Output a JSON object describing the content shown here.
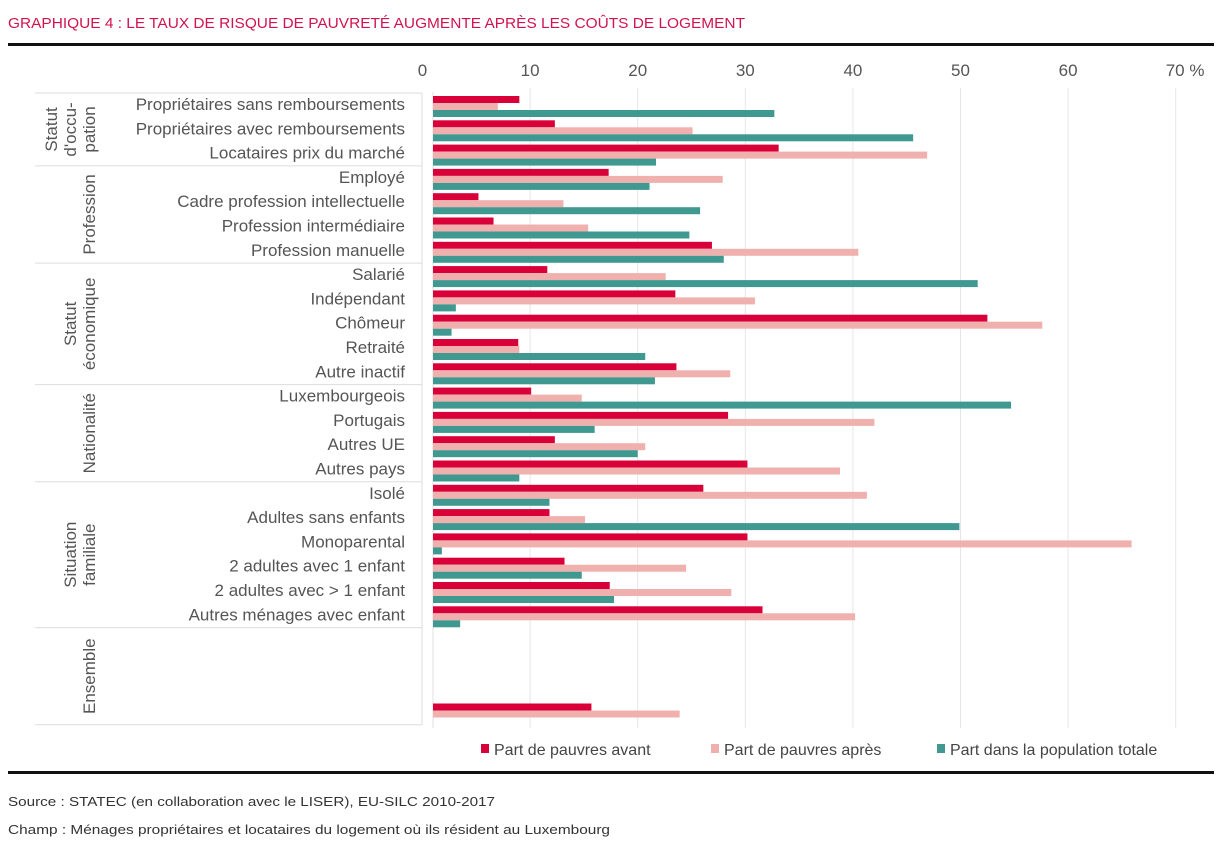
{
  "title": "GRAPHIQUE 4 : LE TAUX DE RISQUE DE PAUVRETÉ AUGMENTE APRÈS LES COÛTS DE LOGEMENT",
  "source": "Source : STATEC (en collaboration avec le LISER), EU-SILC 2010-2017",
  "champ": "Champ : Ménages propriétaires et locataires du logement où ils résident au Luxembourg",
  "colors": {
    "title": "#d1134f",
    "avant": "#d9003a",
    "apres": "#f0b0ae",
    "population": "#3f9990"
  },
  "chart_data": {
    "type": "bar",
    "orientation": "horizontal",
    "title": "LE TAUX DE RISQUE DE PAUVRETÉ AUGMENTE APRÈS LES COÛTS DE LOGEMENT",
    "xlim": [
      0,
      70
    ],
    "x_ticks": [
      0,
      10,
      20,
      30,
      40,
      50,
      60,
      70
    ],
    "x_tick_labels": [
      "0",
      "10",
      "20",
      "30",
      "40",
      "50",
      "60",
      "70 %"
    ],
    "grid": true,
    "legend_position": "bottom",
    "series_names": [
      "Part de pauvres avant",
      "Part de pauvres après",
      "Part dans la population totale"
    ],
    "groups": [
      {
        "label": "Statut\nd'occu-\npation",
        "categories": [
          {
            "label": "Propriétaires sans remboursements",
            "values": [
              9.0,
              7.0,
              32.7
            ]
          },
          {
            "label": "Propriétaires avec remboursements",
            "values": [
              12.3,
              25.1,
              45.6
            ]
          },
          {
            "label": "Locataires prix du marché",
            "values": [
              33.1,
              46.9,
              21.7
            ]
          }
        ]
      },
      {
        "label": "Profession",
        "categories": [
          {
            "label": "Employé",
            "values": [
              17.3,
              27.9,
              21.1
            ]
          },
          {
            "label": "Cadre profession intellectuelle",
            "values": [
              5.2,
              13.1,
              25.8
            ]
          },
          {
            "label": "Profession intermédiaire",
            "values": [
              6.6,
              15.4,
              24.8
            ]
          },
          {
            "label": "Profession manuelle",
            "values": [
              26.9,
              40.5,
              28.0
            ]
          }
        ]
      },
      {
        "label": "Statut\néconomique",
        "categories": [
          {
            "label": "Salarié",
            "values": [
              11.6,
              22.6,
              51.6
            ]
          },
          {
            "label": "Indépendant",
            "values": [
              23.5,
              30.9,
              3.1
            ]
          },
          {
            "label": "Chômeur",
            "values": [
              52.5,
              57.6,
              2.7
            ]
          },
          {
            "label": "Retraité",
            "values": [
              8.9,
              9.0,
              20.7
            ]
          },
          {
            "label": "Autre inactif",
            "values": [
              23.6,
              28.6,
              21.6
            ]
          }
        ]
      },
      {
        "label": "Nationalité",
        "categories": [
          {
            "label": "Luxembourgeois",
            "values": [
              10.1,
              14.8,
              54.7
            ]
          },
          {
            "label": "Portugais",
            "values": [
              28.4,
              42.0,
              16.0
            ]
          },
          {
            "label": "Autres UE",
            "values": [
              12.3,
              20.7,
              20.0
            ]
          },
          {
            "label": "Autres pays",
            "values": [
              30.2,
              38.8,
              9.0
            ]
          }
        ]
      },
      {
        "label": "Situation\nfamiliale",
        "categories": [
          {
            "label": "Isolé",
            "values": [
              26.1,
              41.3,
              11.8
            ]
          },
          {
            "label": "Adultes sans enfants",
            "values": [
              11.8,
              15.1,
              49.9
            ]
          },
          {
            "label": "Monoparental",
            "values": [
              30.2,
              65.9,
              1.8
            ]
          },
          {
            "label": "2 adultes avec 1 enfant",
            "values": [
              13.2,
              24.5,
              14.8
            ]
          },
          {
            "label": "2 adultes avec > 1 enfant",
            "values": [
              17.4,
              28.7,
              17.8
            ]
          },
          {
            "label": "Autres ménages avec enfant",
            "values": [
              31.6,
              40.2,
              3.5
            ]
          }
        ]
      },
      {
        "label": "Ensemble",
        "categories": [
          {
            "label": "",
            "values": [
              15.7,
              23.9,
              null
            ]
          }
        ]
      }
    ]
  }
}
